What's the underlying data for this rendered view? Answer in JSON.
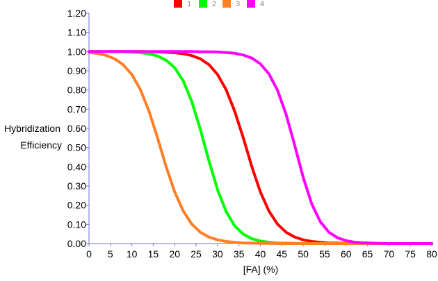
{
  "chart_data": {
    "type": "line",
    "xlabel": "[FA] (%)",
    "ylabel": [
      "Hybridization",
      "Efficiency"
    ],
    "xlim": [
      0,
      80
    ],
    "ylim": [
      0,
      1.2
    ],
    "x_ticks": [
      "0",
      "5",
      "10",
      "15",
      "20",
      "25",
      "30",
      "35",
      "40",
      "45",
      "50",
      "55",
      "60",
      "65",
      "70",
      "75",
      "80"
    ],
    "y_ticks": [
      "0.00",
      "0.10",
      "0.20",
      "0.30",
      "0.40",
      "0.50",
      "0.60",
      "0.70",
      "0.80",
      "0.90",
      "1.00",
      "1.10",
      "1.20"
    ],
    "grid": false,
    "legend_position": "top-center",
    "x": [
      0,
      2,
      4,
      6,
      8,
      10,
      12,
      14,
      16,
      18,
      20,
      22,
      24,
      26,
      28,
      30,
      32,
      34,
      36,
      38,
      40,
      42,
      44,
      46,
      48,
      50,
      52,
      54,
      56,
      58,
      60,
      62,
      64,
      66,
      68,
      70,
      72,
      74,
      76,
      78,
      80
    ],
    "series": [
      {
        "name": "1",
        "color": "#ff0000",
        "values": [
          1.0,
          1.0,
          1.0,
          1.0,
          1.0,
          1.0,
          1.0,
          0.999,
          0.998,
          0.997,
          0.994,
          0.989,
          0.979,
          0.962,
          0.932,
          0.881,
          0.802,
          0.69,
          0.551,
          0.401,
          0.269,
          0.169,
          0.101,
          0.059,
          0.034,
          0.019,
          0.011,
          0.006,
          0.003,
          0.002,
          0.001,
          0.001,
          0.0,
          0.0,
          0.0,
          0.0,
          0.0,
          0.0,
          0.0,
          0.0,
          0.0
        ]
      },
      {
        "name": "2",
        "color": "#00ff00",
        "values": [
          1.0,
          1.0,
          1.0,
          0.999,
          0.999,
          0.997,
          0.994,
          0.988,
          0.977,
          0.955,
          0.916,
          0.847,
          0.739,
          0.594,
          0.431,
          0.281,
          0.167,
          0.092,
          0.049,
          0.025,
          0.013,
          0.007,
          0.003,
          0.002,
          0.001,
          0.0,
          0.0,
          0.0,
          0.0,
          0.0,
          0.0,
          0.0,
          0.0,
          0.0,
          0.0,
          0.0,
          0.0,
          0.0,
          0.0,
          0.0,
          0.0
        ]
      },
      {
        "name": "3",
        "color": "#ff7f27",
        "values": [
          0.995,
          0.99,
          0.98,
          0.962,
          0.931,
          0.881,
          0.802,
          0.69,
          0.551,
          0.401,
          0.269,
          0.169,
          0.101,
          0.059,
          0.034,
          0.019,
          0.011,
          0.006,
          0.003,
          0.002,
          0.001,
          0.001,
          0.0,
          0.0,
          0.0,
          0.0,
          0.0,
          0.0,
          0.0,
          0.0,
          0.0,
          0.0,
          0.0,
          0.0,
          0.0,
          0.0,
          0.0,
          0.0,
          0.0,
          0.0,
          0.0
        ]
      },
      {
        "name": "4",
        "color": "#ff00ff",
        "values": [
          1.0,
          1.0,
          1.0,
          1.0,
          1.0,
          1.0,
          1.0,
          1.0,
          1.0,
          1.0,
          1.0,
          1.0,
          1.0,
          0.999,
          0.999,
          0.998,
          0.995,
          0.991,
          0.982,
          0.966,
          0.936,
          0.884,
          0.798,
          0.673,
          0.513,
          0.345,
          0.206,
          0.113,
          0.059,
          0.03,
          0.015,
          0.007,
          0.004,
          0.002,
          0.001,
          0.0,
          0.0,
          0.0,
          0.0,
          0.0,
          0.0
        ]
      }
    ]
  }
}
